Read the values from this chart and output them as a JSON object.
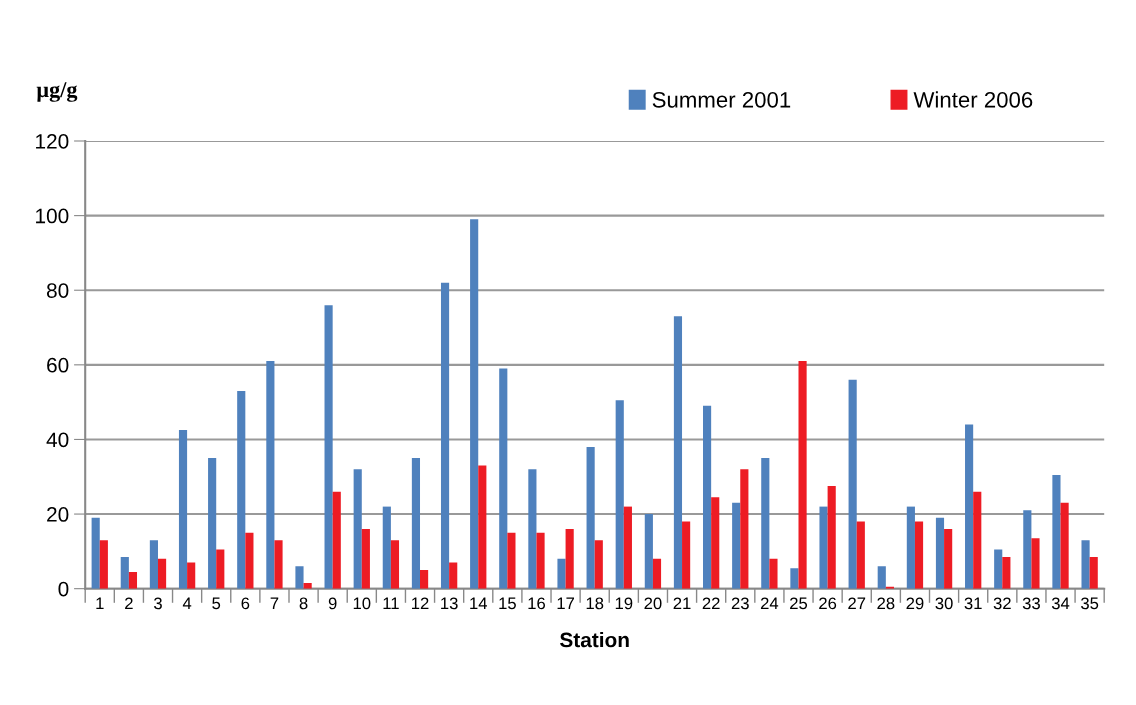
{
  "chart_data": {
    "type": "bar",
    "xlabel": "Station",
    "ylabel": "µg/g",
    "categories": [
      "1",
      "2",
      "3",
      "4",
      "5",
      "6",
      "7",
      "8",
      "9",
      "10",
      "11",
      "12",
      "13",
      "14",
      "15",
      "16",
      "17",
      "18",
      "19",
      "20",
      "21",
      "22",
      "23",
      "24",
      "25",
      "26",
      "27",
      "28",
      "29",
      "30",
      "31",
      "32",
      "33",
      "34",
      "35"
    ],
    "series": [
      {
        "name": "Summer 2001",
        "color": "#4f81bd",
        "values": [
          19,
          8.5,
          13,
          42.5,
          35,
          53,
          61,
          6,
          76,
          32,
          22,
          35,
          82,
          99,
          59,
          32,
          8,
          38,
          50.5,
          20,
          73,
          49,
          23,
          35,
          5.5,
          22,
          56,
          6,
          22,
          19,
          44,
          10.5,
          21,
          30.5,
          13
        ]
      },
      {
        "name": "Winter 2006",
        "color": "#ed1c24",
        "values": [
          13,
          4.5,
          8,
          7,
          10.5,
          15,
          13,
          1.5,
          26,
          16,
          13,
          5,
          7,
          33,
          15,
          15,
          16,
          13,
          22,
          8,
          18,
          24.5,
          32,
          8,
          61,
          27.5,
          18,
          0.5,
          18,
          16,
          26,
          8.5,
          13.5,
          23,
          8.5
        ]
      }
    ],
    "ylim": [
      0,
      120
    ],
    "yticks": [
      0,
      20,
      40,
      60,
      80,
      100,
      120
    ],
    "grid": "y",
    "legend": "top right"
  }
}
